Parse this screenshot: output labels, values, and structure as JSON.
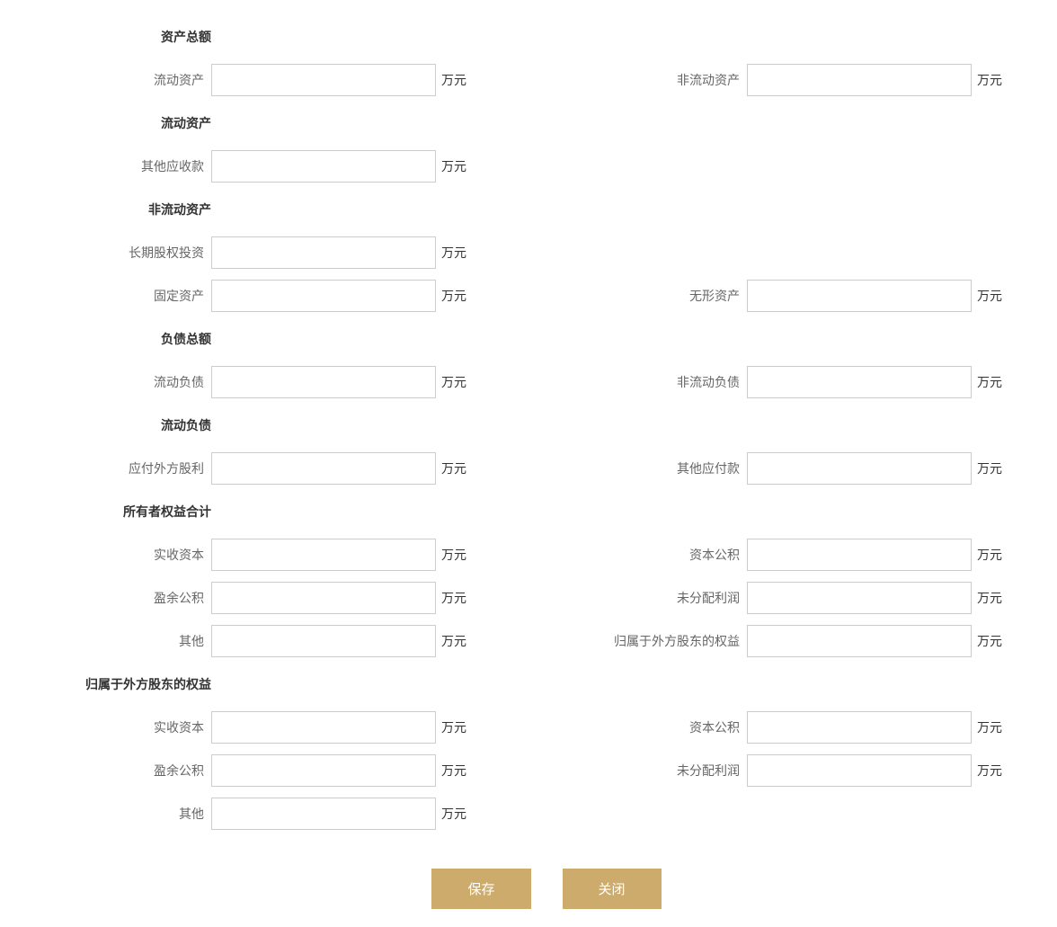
{
  "unit": "万元",
  "sections": {
    "total_assets": {
      "heading": "资产总额",
      "current_assets_label": "流动资产",
      "non_current_assets_label": "非流动资产"
    },
    "current_assets": {
      "heading": "流动资产",
      "other_receivables_label": "其他应收款"
    },
    "non_current_assets": {
      "heading": "非流动资产",
      "long_term_equity_label": "长期股权投资",
      "fixed_assets_label": "固定资产",
      "intangible_assets_label": "无形资产"
    },
    "total_liabilities": {
      "heading": "负债总额",
      "current_liabilities_label": "流动负债",
      "non_current_liabilities_label": "非流动负债"
    },
    "current_liabilities": {
      "heading": "流动负债",
      "foreign_dividends_payable_label": "应付外方股利",
      "other_payables_label": "其他应付款"
    },
    "owner_equity": {
      "heading": "所有者权益合计",
      "paid_in_capital_label": "实收资本",
      "capital_reserve_label": "资本公积",
      "surplus_reserve_label": "盈余公积",
      "undistributed_profit_label": "未分配利润",
      "other_label": "其他",
      "foreign_shareholder_equity_label": "归属于外方股东的权益"
    },
    "foreign_shareholder_equity": {
      "heading": "归属于外方股东的权益",
      "paid_in_capital_label": "实收资本",
      "capital_reserve_label": "资本公积",
      "surplus_reserve_label": "盈余公积",
      "undistributed_profit_label": "未分配利润",
      "other_label": "其他"
    }
  },
  "buttons": {
    "save": "保存",
    "close": "关闭"
  },
  "colors": {
    "button_bg": "#cdab6d",
    "button_text": "#ffffff",
    "border": "#cccccc",
    "text": "#333333",
    "label_text": "#666666"
  }
}
